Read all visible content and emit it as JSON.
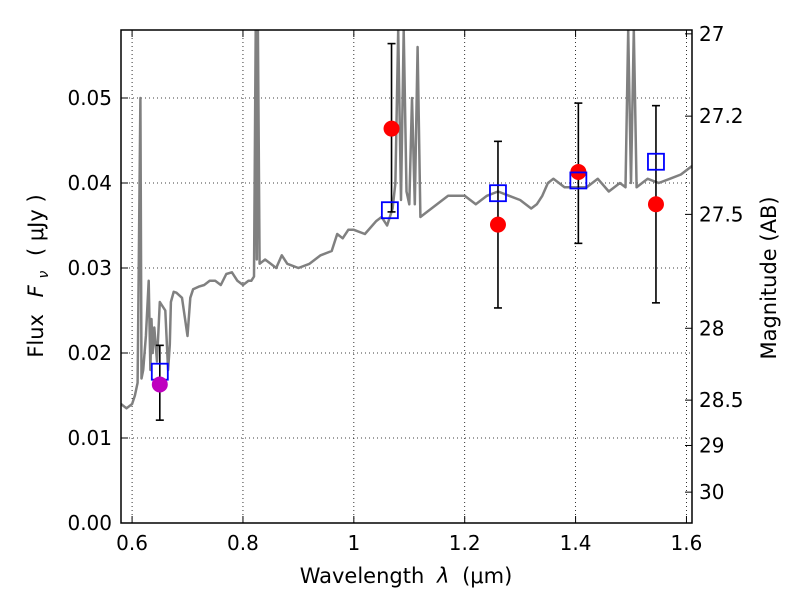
{
  "chart_data": {
    "type": "line",
    "xlabel_prefix": "Wavelength",
    "xlabel_symbol": "λ",
    "xlabel_unit": "(μm)",
    "ylabel_prefix": "Flux",
    "ylabel_symbol": "F",
    "ylabel_sub": "ν",
    "ylabel_unit": "( μJy )",
    "y2label": "Magnitude (AB)",
    "xlim": [
      0.58,
      1.61
    ],
    "ylim": [
      0.0,
      0.058
    ],
    "grid": true,
    "x_ticks": [
      0.6,
      0.8,
      1.0,
      1.2,
      1.4,
      1.6
    ],
    "x_tick_labels": [
      "0.6",
      "0.8",
      "1",
      "1.2",
      "1.4",
      "1.6"
    ],
    "y_ticks": [
      0.0,
      0.01,
      0.02,
      0.03,
      0.04,
      0.05
    ],
    "y_tick_labels": [
      "0.00",
      "0.01",
      "0.02",
      "0.03",
      "0.04",
      "0.05"
    ],
    "y2_ticks": [
      27,
      27.2,
      27.5,
      28,
      28.5,
      29,
      30
    ],
    "y2_tick_labels": [
      "27",
      "27.2",
      "27.5",
      "28",
      "28.5",
      "29",
      "30"
    ],
    "colors": {
      "spectrum": "#808080",
      "observed": "#ff0000",
      "observed_first": "#bf00bf",
      "model": "#0000ff",
      "errorbar": "#000000"
    },
    "series": [
      {
        "kind": "spectrum",
        "x": [
          0.58,
          0.59,
          0.6,
          0.605,
          0.61,
          0.615,
          0.617,
          0.62,
          0.625,
          0.63,
          0.633,
          0.635,
          0.637,
          0.64,
          0.645,
          0.65,
          0.66,
          0.665,
          0.668,
          0.67,
          0.675,
          0.68,
          0.69,
          0.7,
          0.705,
          0.71,
          0.72,
          0.73,
          0.74,
          0.75,
          0.76,
          0.77,
          0.78,
          0.79,
          0.8,
          0.81,
          0.815,
          0.82,
          0.823,
          0.825,
          0.827,
          0.83,
          0.84,
          0.85,
          0.86,
          0.87,
          0.88,
          0.9,
          0.92,
          0.94,
          0.96,
          0.97,
          0.98,
          0.99,
          1.0,
          1.02,
          1.04,
          1.05,
          1.06,
          1.07,
          1.075,
          1.08,
          1.085,
          1.09,
          1.095,
          1.1,
          1.105,
          1.11,
          1.115,
          1.12,
          1.13,
          1.15,
          1.17,
          1.2,
          1.22,
          1.24,
          1.26,
          1.28,
          1.3,
          1.32,
          1.33,
          1.34,
          1.35,
          1.36,
          1.38,
          1.4,
          1.42,
          1.44,
          1.46,
          1.48,
          1.49,
          1.495,
          1.5,
          1.505,
          1.51,
          1.52,
          1.53,
          1.55,
          1.57,
          1.59,
          1.61
        ],
        "y": [
          0.014,
          0.0135,
          0.014,
          0.015,
          0.0165,
          0.05,
          0.017,
          0.018,
          0.022,
          0.0285,
          0.018,
          0.024,
          0.02,
          0.023,
          0.019,
          0.026,
          0.025,
          0.018,
          0.021,
          0.026,
          0.0272,
          0.0271,
          0.0265,
          0.022,
          0.0265,
          0.0275,
          0.0278,
          0.028,
          0.0285,
          0.0285,
          0.028,
          0.0293,
          0.0295,
          0.0285,
          0.028,
          0.0285,
          0.0285,
          0.029,
          0.058,
          0.031,
          0.058,
          0.0305,
          0.031,
          0.0305,
          0.03,
          0.0315,
          0.0305,
          0.03,
          0.0305,
          0.0315,
          0.032,
          0.034,
          0.0335,
          0.0345,
          0.0345,
          0.034,
          0.0355,
          0.036,
          0.035,
          0.037,
          0.04,
          0.058,
          0.038,
          0.058,
          0.039,
          0.0375,
          0.05,
          0.0375,
          0.056,
          0.036,
          0.0365,
          0.0375,
          0.0385,
          0.0385,
          0.0375,
          0.0385,
          0.039,
          0.0385,
          0.038,
          0.037,
          0.0375,
          0.0385,
          0.04,
          0.0405,
          0.0395,
          0.0395,
          0.0395,
          0.0405,
          0.039,
          0.04,
          0.0395,
          0.058,
          0.04,
          0.058,
          0.0395,
          0.04,
          0.0405,
          0.04,
          0.0405,
          0.041,
          0.042
        ]
      },
      {
        "kind": "model",
        "marker": "square",
        "x": [
          0.65,
          1.065,
          1.26,
          1.405,
          1.545
        ],
        "y": [
          0.0178,
          0.0368,
          0.0388,
          0.0403,
          0.0425
        ]
      },
      {
        "kind": "observed",
        "marker": "circle",
        "x": [
          0.65,
          1.068,
          1.26,
          1.405,
          1.545
        ],
        "y": [
          0.0163,
          0.0464,
          0.0351,
          0.0413,
          0.0375
        ],
        "yerr_low": [
          0.0121,
          0.0366,
          0.0253,
          0.0329,
          0.0259
        ],
        "yerr_high": [
          0.0209,
          0.0564,
          0.0449,
          0.0494,
          0.0491
        ]
      }
    ]
  }
}
